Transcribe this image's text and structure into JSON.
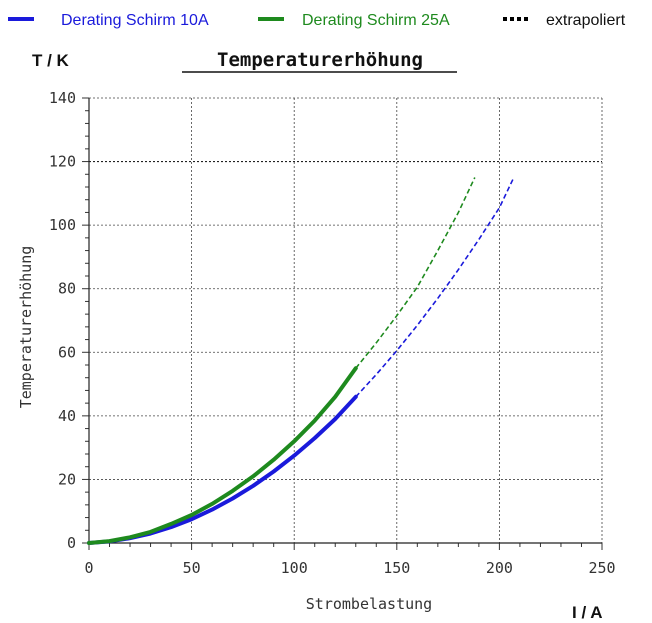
{
  "chart_data": {
    "type": "line",
    "title": "Temperaturerhöhung",
    "xlabel": "Strombelastung",
    "ylabel": "Temperaturerhöhung",
    "x_unit": "I / A",
    "y_unit": "T / K",
    "xlim": [
      0,
      250
    ],
    "ylim": [
      0,
      140
    ],
    "x_ticks": [
      "0",
      "50",
      "100",
      "150",
      "200",
      "250"
    ],
    "y_ticks": [
      "0",
      "20",
      "40",
      "60",
      "80",
      "100",
      "120",
      "140"
    ],
    "grid": true,
    "legend": [
      {
        "label": "Derating Schirm 10A",
        "color": "#1a1adb",
        "style": "solid"
      },
      {
        "label": "Derating Schirm 25A",
        "color": "#1e8a1e",
        "style": "solid"
      },
      {
        "label": "extrapoliert",
        "color": "#000000",
        "style": "dotted"
      }
    ],
    "series": [
      {
        "name": "Derating Schirm 10A",
        "color": "#1a1adb",
        "measured": {
          "x": [
            0,
            10,
            20,
            30,
            40,
            50,
            60,
            70,
            80,
            90,
            100,
            110,
            120,
            130
          ],
          "y": [
            0,
            0.5,
            1.5,
            3,
            5,
            7.5,
            10.5,
            14,
            18,
            22.5,
            27.5,
            33,
            39,
            46
          ]
        },
        "extrapolated": {
          "x": [
            130,
            140,
            150,
            160,
            170,
            180,
            190,
            200,
            207
          ],
          "y": [
            46,
            53,
            60.5,
            68.5,
            77,
            86,
            95.5,
            105.5,
            115
          ]
        }
      },
      {
        "name": "Derating Schirm 25A",
        "color": "#1e8a1e",
        "measured": {
          "x": [
            0,
            10,
            20,
            30,
            40,
            50,
            60,
            70,
            80,
            90,
            100,
            110,
            120,
            130
          ],
          "y": [
            0,
            0.6,
            1.8,
            3.5,
            6,
            8.8,
            12.3,
            16.4,
            21,
            26.2,
            32,
            38.5,
            46,
            55
          ]
        },
        "extrapolated": {
          "x": [
            130,
            140,
            150,
            160,
            170,
            180,
            188
          ],
          "y": [
            55,
            63,
            71.5,
            80.5,
            92,
            104,
            115
          ]
        }
      }
    ]
  }
}
